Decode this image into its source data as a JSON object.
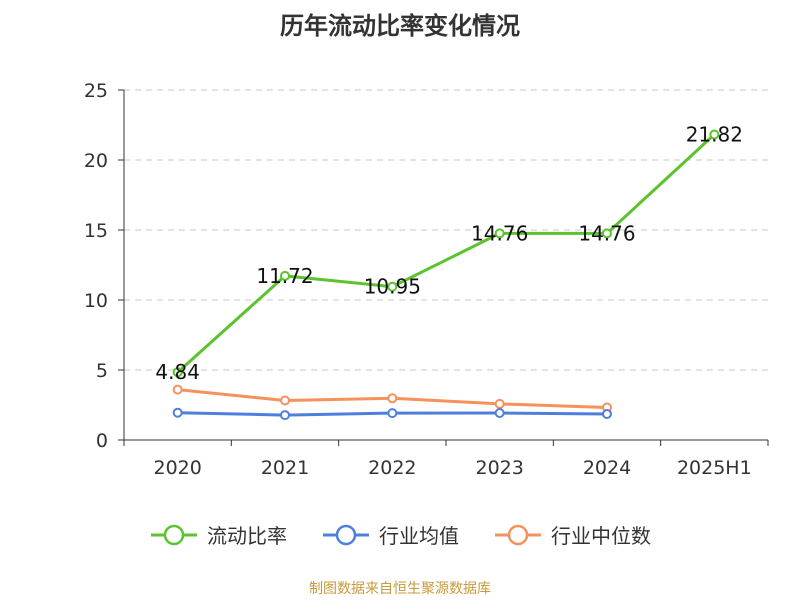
{
  "title": "历年流动比率变化情况",
  "source": "制图数据来自恒生聚源数据库",
  "chart_data": {
    "type": "line",
    "categories": [
      "2020",
      "2021",
      "2022",
      "2023",
      "2024",
      "2025H1"
    ],
    "ylim": [
      0,
      25
    ],
    "yticks": [
      0,
      5,
      10,
      15,
      20,
      25
    ],
    "grid": true,
    "legend_position": "bottom",
    "series": [
      {
        "name": "流动比率",
        "color": "#5cc22e",
        "values": [
          4.84,
          11.72,
          10.95,
          14.76,
          14.76,
          21.82
        ],
        "show_labels": true
      },
      {
        "name": "行业均值",
        "color": "#4f7fdc",
        "values": [
          1.95,
          1.78,
          1.92,
          1.93,
          1.86,
          null
        ],
        "show_labels": false
      },
      {
        "name": "行业中位数",
        "color": "#f5915a",
        "values": [
          3.6,
          2.82,
          2.98,
          2.58,
          2.32,
          null
        ],
        "show_labels": false
      }
    ]
  }
}
